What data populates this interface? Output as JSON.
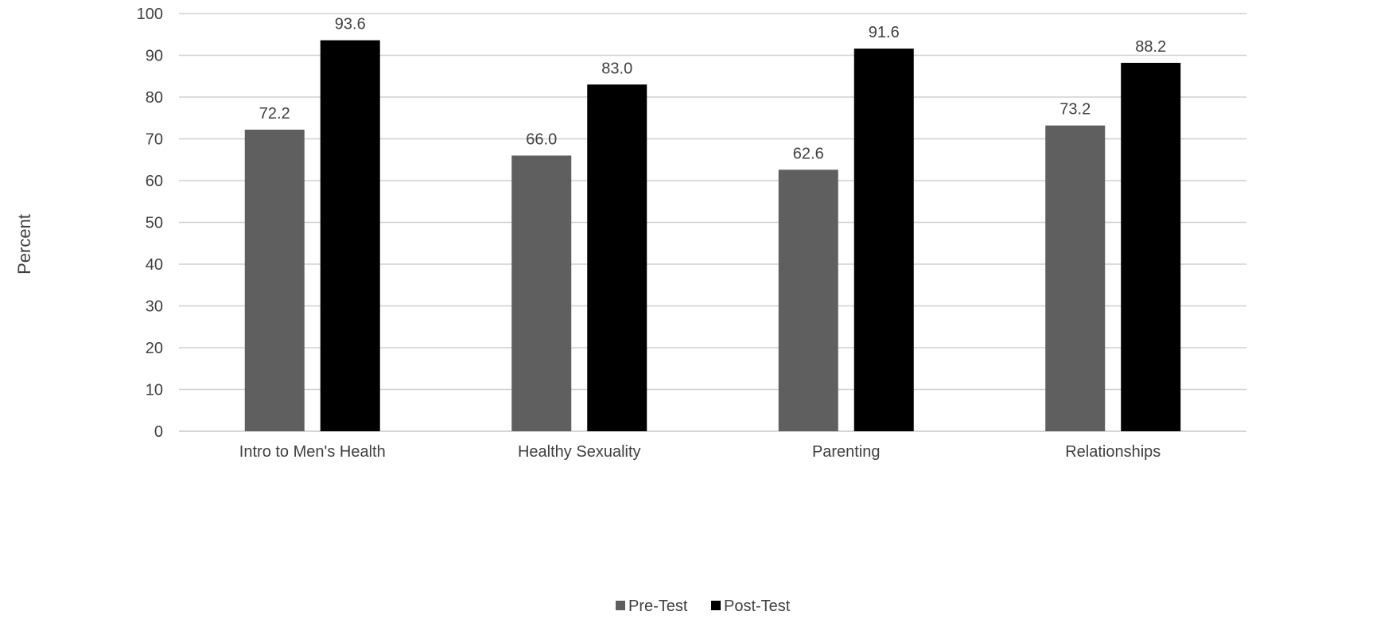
{
  "chart_data": {
    "type": "bar",
    "title": "",
    "xlabel": "",
    "ylabel": "Percent",
    "ylim": [
      0,
      100
    ],
    "yticks": [
      0,
      10,
      20,
      30,
      40,
      50,
      60,
      70,
      80,
      90,
      100
    ],
    "grid": true,
    "legend_position": "bottom",
    "categories": [
      "Intro to Men's Health",
      "Healthy Sexuality",
      "Parenting",
      "Relationships"
    ],
    "series": [
      {
        "name": "Pre-Test",
        "color": "#5f5f5f",
        "values": [
          72.2,
          66.0,
          62.6,
          73.2
        ],
        "labels": [
          "72.2",
          "66.0",
          "62.6",
          "73.2"
        ]
      },
      {
        "name": "Post-Test",
        "color": "#000000",
        "values": [
          93.6,
          83.0,
          91.6,
          88.2
        ],
        "labels": [
          "93.6",
          "83.0",
          "91.6",
          "88.2"
        ]
      }
    ],
    "gridline_color": "#d0d0d0"
  }
}
